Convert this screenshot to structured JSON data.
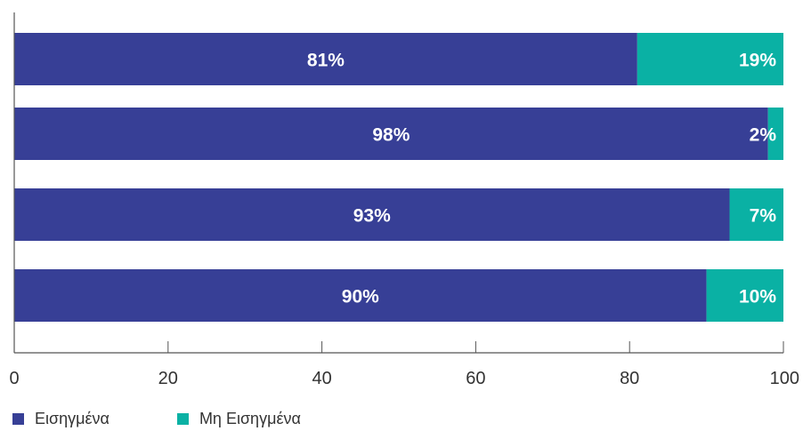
{
  "chart_data": {
    "type": "bar",
    "orientation": "horizontal",
    "stacked": true,
    "categories": [
      "",
      "",
      "",
      ""
    ],
    "series": [
      {
        "name": "Εισηγμένα",
        "values": [
          81,
          98,
          93,
          90
        ],
        "labels": [
          "81%",
          "98%",
          "93%",
          "90%"
        ],
        "color": "#373F96"
      },
      {
        "name": "Μη Εισηγμένα",
        "values": [
          19,
          2,
          7,
          10
        ],
        "labels": [
          "19%",
          "2%",
          "7%",
          "10%"
        ],
        "color": "#0AB1A4"
      }
    ],
    "xlim": [
      0,
      100
    ],
    "xticks": [
      "0",
      "20",
      "40",
      "60",
      "80",
      "100"
    ],
    "grid": false,
    "legend_position": "bottom-left"
  }
}
